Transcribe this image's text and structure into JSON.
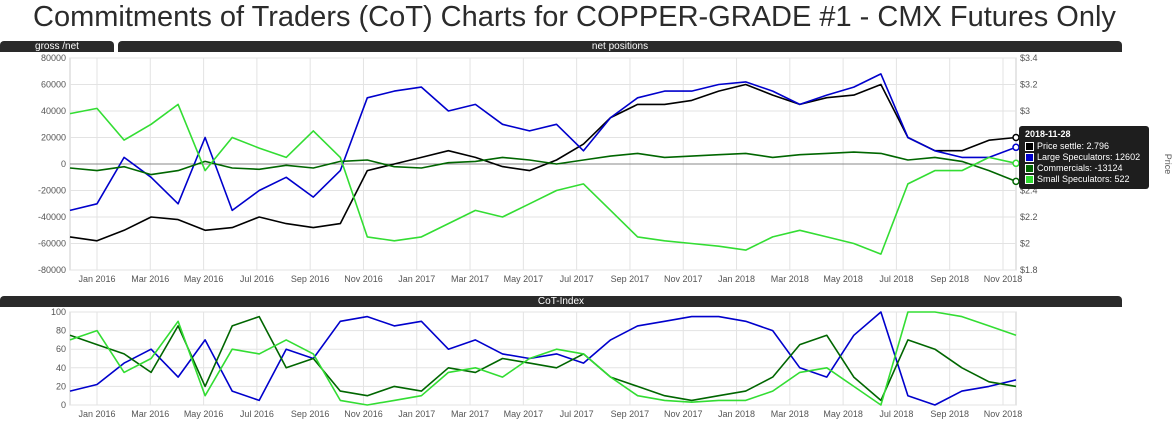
{
  "title": "Commitments of Traders (CoT) Charts for COPPER-GRADE #1 - CMX Futures Only",
  "tabs": {
    "gross_net": "gross /net",
    "net_positions": "net positions",
    "cot_index": "CoT-Index"
  },
  "colors": {
    "price": "#000000",
    "large_speculators": "#0000cc",
    "commercials": "#006600",
    "small_speculators": "#33dd33",
    "grid": "#e3e3e3",
    "tab_bg": "#2a2a2a"
  },
  "tooltip": {
    "date": "2018-11-28",
    "rows": [
      {
        "label": "Price settle: 2.796",
        "color": "#000000"
      },
      {
        "label": "Large Speculators: 12602",
        "color": "#0000cc"
      },
      {
        "label": "Commercials: -13124",
        "color": "#006600"
      },
      {
        "label": "Small Speculators: 522",
        "color": "#33dd33"
      }
    ]
  },
  "chart_data": [
    {
      "type": "line",
      "name": "net positions",
      "x_labels": [
        "Jan 2016",
        "Mar 2016",
        "May 2016",
        "Jul 2016",
        "Sep 2016",
        "Nov 2016",
        "Jan 2017",
        "Mar 2017",
        "May 2017",
        "Jul 2017",
        "Sep 2017",
        "Nov 2017",
        "Jan 2018",
        "Mar 2018",
        "May 2018",
        "Jul 2018",
        "Sep 2018",
        "Nov 2018"
      ],
      "y_ticks": [
        "80000",
        "60000",
        "40000",
        "20000",
        "0",
        "-20000",
        "-40000",
        "-60000",
        "-80000"
      ],
      "y_range": [
        -80000,
        80000
      ],
      "y2_ticks": [
        "$3.4",
        "$3.2",
        "$3",
        "$2.8",
        "$2.6",
        "$2.4",
        "$2.2",
        "$2",
        "$1.8"
      ],
      "y2_range": [
        1.8,
        3.4
      ],
      "y2_label": "Price",
      "x": [
        "2015-12",
        "2016-01",
        "2016-02",
        "2016-03",
        "2016-04",
        "2016-05",
        "2016-06",
        "2016-07",
        "2016-08",
        "2016-09",
        "2016-10",
        "2016-11",
        "2016-12",
        "2017-01",
        "2017-02",
        "2017-03",
        "2017-04",
        "2017-05",
        "2017-06",
        "2017-07",
        "2017-08",
        "2017-09",
        "2017-10",
        "2017-11",
        "2017-12",
        "2018-01",
        "2018-02",
        "2018-03",
        "2018-04",
        "2018-05",
        "2018-06",
        "2018-07",
        "2018-08",
        "2018-09",
        "2018-10",
        "2018-11"
      ],
      "series": [
        {
          "name": "Price settle",
          "axis": "right",
          "color": "#000000",
          "values": [
            2.05,
            2.02,
            2.1,
            2.2,
            2.18,
            2.1,
            2.12,
            2.2,
            2.15,
            2.12,
            2.15,
            2.55,
            2.6,
            2.65,
            2.7,
            2.65,
            2.58,
            2.55,
            2.63,
            2.75,
            2.95,
            3.05,
            3.05,
            3.08,
            3.15,
            3.2,
            3.12,
            3.05,
            3.1,
            3.12,
            3.2,
            2.8,
            2.7,
            2.7,
            2.78,
            2.8
          ]
        },
        {
          "name": "Large Speculators",
          "axis": "left",
          "color": "#0000cc",
          "values": [
            -35000,
            -30000,
            5000,
            -10000,
            -30000,
            20000,
            -35000,
            -20000,
            -10000,
            -25000,
            -5000,
            50000,
            55000,
            58000,
            40000,
            45000,
            30000,
            25000,
            30000,
            10000,
            35000,
            50000,
            55000,
            55000,
            60000,
            62000,
            55000,
            45000,
            52000,
            58000,
            68000,
            20000,
            10000,
            5000,
            5000,
            12602
          ]
        },
        {
          "name": "Commercials",
          "axis": "left",
          "color": "#006600",
          "values": [
            -3000,
            -5000,
            -2000,
            -8000,
            -5000,
            2000,
            -3000,
            -4000,
            -1000,
            -3000,
            2000,
            3000,
            -2000,
            -3000,
            1000,
            2000,
            5000,
            3000,
            0,
            3000,
            6000,
            8000,
            5000,
            6000,
            7000,
            8000,
            5000,
            7000,
            8000,
            9000,
            8000,
            3000,
            5000,
            2000,
            -5000,
            -13124
          ]
        },
        {
          "name": "Small Speculators",
          "axis": "left",
          "color": "#33dd33",
          "values": [
            38000,
            42000,
            18000,
            30000,
            45000,
            -5000,
            20000,
            12000,
            5000,
            25000,
            5000,
            -55000,
            -58000,
            -55000,
            -45000,
            -35000,
            -40000,
            -30000,
            -20000,
            -15000,
            -35000,
            -55000,
            -58000,
            -60000,
            -62000,
            -65000,
            -55000,
            -50000,
            -55000,
            -60000,
            -68000,
            -15000,
            -5000,
            -5000,
            5000,
            522
          ]
        }
      ]
    },
    {
      "type": "line",
      "name": "CoT-Index",
      "x_labels": [
        "Jan 2016",
        "Mar 2016",
        "May 2016",
        "Jul 2016",
        "Sep 2016",
        "Nov 2016",
        "Jan 2017",
        "Mar 2017",
        "May 2017",
        "Jul 2017",
        "Sep 2017",
        "Nov 2017",
        "Jan 2018",
        "Mar 2018",
        "May 2018",
        "Jul 2018",
        "Sep 2018",
        "Nov 2018"
      ],
      "y_ticks": [
        "100",
        "80",
        "60",
        "40",
        "20",
        "0"
      ],
      "y_range": [
        0,
        100
      ],
      "x": [
        "2015-12",
        "2016-01",
        "2016-02",
        "2016-03",
        "2016-04",
        "2016-05",
        "2016-06",
        "2016-07",
        "2016-08",
        "2016-09",
        "2016-10",
        "2016-11",
        "2016-12",
        "2017-01",
        "2017-02",
        "2017-03",
        "2017-04",
        "2017-05",
        "2017-06",
        "2017-07",
        "2017-08",
        "2017-09",
        "2017-10",
        "2017-11",
        "2017-12",
        "2018-01",
        "2018-02",
        "2018-03",
        "2018-04",
        "2018-05",
        "2018-06",
        "2018-07",
        "2018-08",
        "2018-09",
        "2018-10",
        "2018-11"
      ],
      "series": [
        {
          "name": "Large Speculators",
          "color": "#0000cc",
          "values": [
            15,
            22,
            45,
            60,
            30,
            70,
            15,
            5,
            60,
            50,
            90,
            95,
            85,
            90,
            60,
            70,
            55,
            50,
            55,
            45,
            70,
            85,
            90,
            95,
            95,
            90,
            80,
            40,
            30,
            75,
            100,
            10,
            0,
            15,
            20,
            27
          ]
        },
        {
          "name": "Commercials",
          "color": "#006600",
          "values": [
            75,
            65,
            55,
            35,
            85,
            20,
            85,
            95,
            40,
            50,
            15,
            10,
            20,
            15,
            40,
            35,
            50,
            45,
            40,
            55,
            30,
            20,
            10,
            5,
            10,
            15,
            30,
            65,
            75,
            30,
            5,
            70,
            60,
            40,
            25,
            20
          ]
        },
        {
          "name": "Small Speculators",
          "color": "#33dd33",
          "values": [
            70,
            80,
            35,
            50,
            90,
            10,
            60,
            55,
            70,
            55,
            5,
            0,
            5,
            10,
            35,
            40,
            30,
            50,
            60,
            55,
            30,
            10,
            5,
            3,
            5,
            5,
            15,
            35,
            40,
            20,
            0,
            100,
            100,
            95,
            85,
            75
          ]
        }
      ]
    }
  ]
}
